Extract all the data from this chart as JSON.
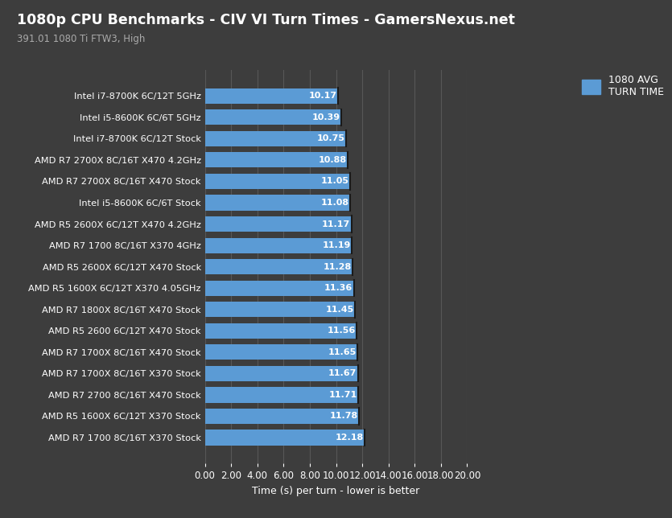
{
  "title": "1080p CPU Benchmarks - CIV VI Turn Times - GamersNexus.net",
  "subtitle": "391.01 1080 Ti FTW3, High",
  "xlabel": "Time (s) per turn - lower is better",
  "legend_label": "1080 AVG\nTURN TIME",
  "bar_color": "#5b9bd5",
  "bg_color": "#3d3d3d",
  "text_color": "#ffffff",
  "subtitle_color": "#aaaaaa",
  "grid_color": "#575757",
  "xlim": [
    0,
    20
  ],
  "xticks": [
    0,
    2,
    4,
    6,
    8,
    10,
    12,
    14,
    16,
    18,
    20
  ],
  "categories": [
    "AMD R7 1700 8C/16T X370 Stock",
    "AMD R5 1600X 6C/12T X370 Stock",
    "AMD R7 2700 8C/16T X470 Stock",
    "AMD R7 1700X 8C/16T X370 Stock",
    "AMD R7 1700X 8C/16T X470 Stock",
    "AMD R5 2600 6C/12T X470 Stock",
    "AMD R7 1800X 8C/16T X470 Stock",
    "AMD R5 1600X 6C/12T X370 4.05GHz",
    "AMD R5 2600X 6C/12T X470 Stock",
    "AMD R7 1700 8C/16T X370 4GHz",
    "AMD R5 2600X 6C/12T X470 4.2GHz",
    "Intel i5-8600K 6C/6T Stock",
    "AMD R7 2700X 8C/16T X470 Stock",
    "AMD R7 2700X 8C/16T X470 4.2GHz",
    "Intel i7-8700K 6C/12T Stock",
    "Intel i5-8600K 6C/6T 5GHz",
    "Intel i7-8700K 6C/12T 5GHz"
  ],
  "values": [
    12.18,
    11.78,
    11.71,
    11.67,
    11.65,
    11.56,
    11.45,
    11.36,
    11.28,
    11.19,
    11.17,
    11.08,
    11.05,
    10.88,
    10.75,
    10.39,
    10.17
  ]
}
